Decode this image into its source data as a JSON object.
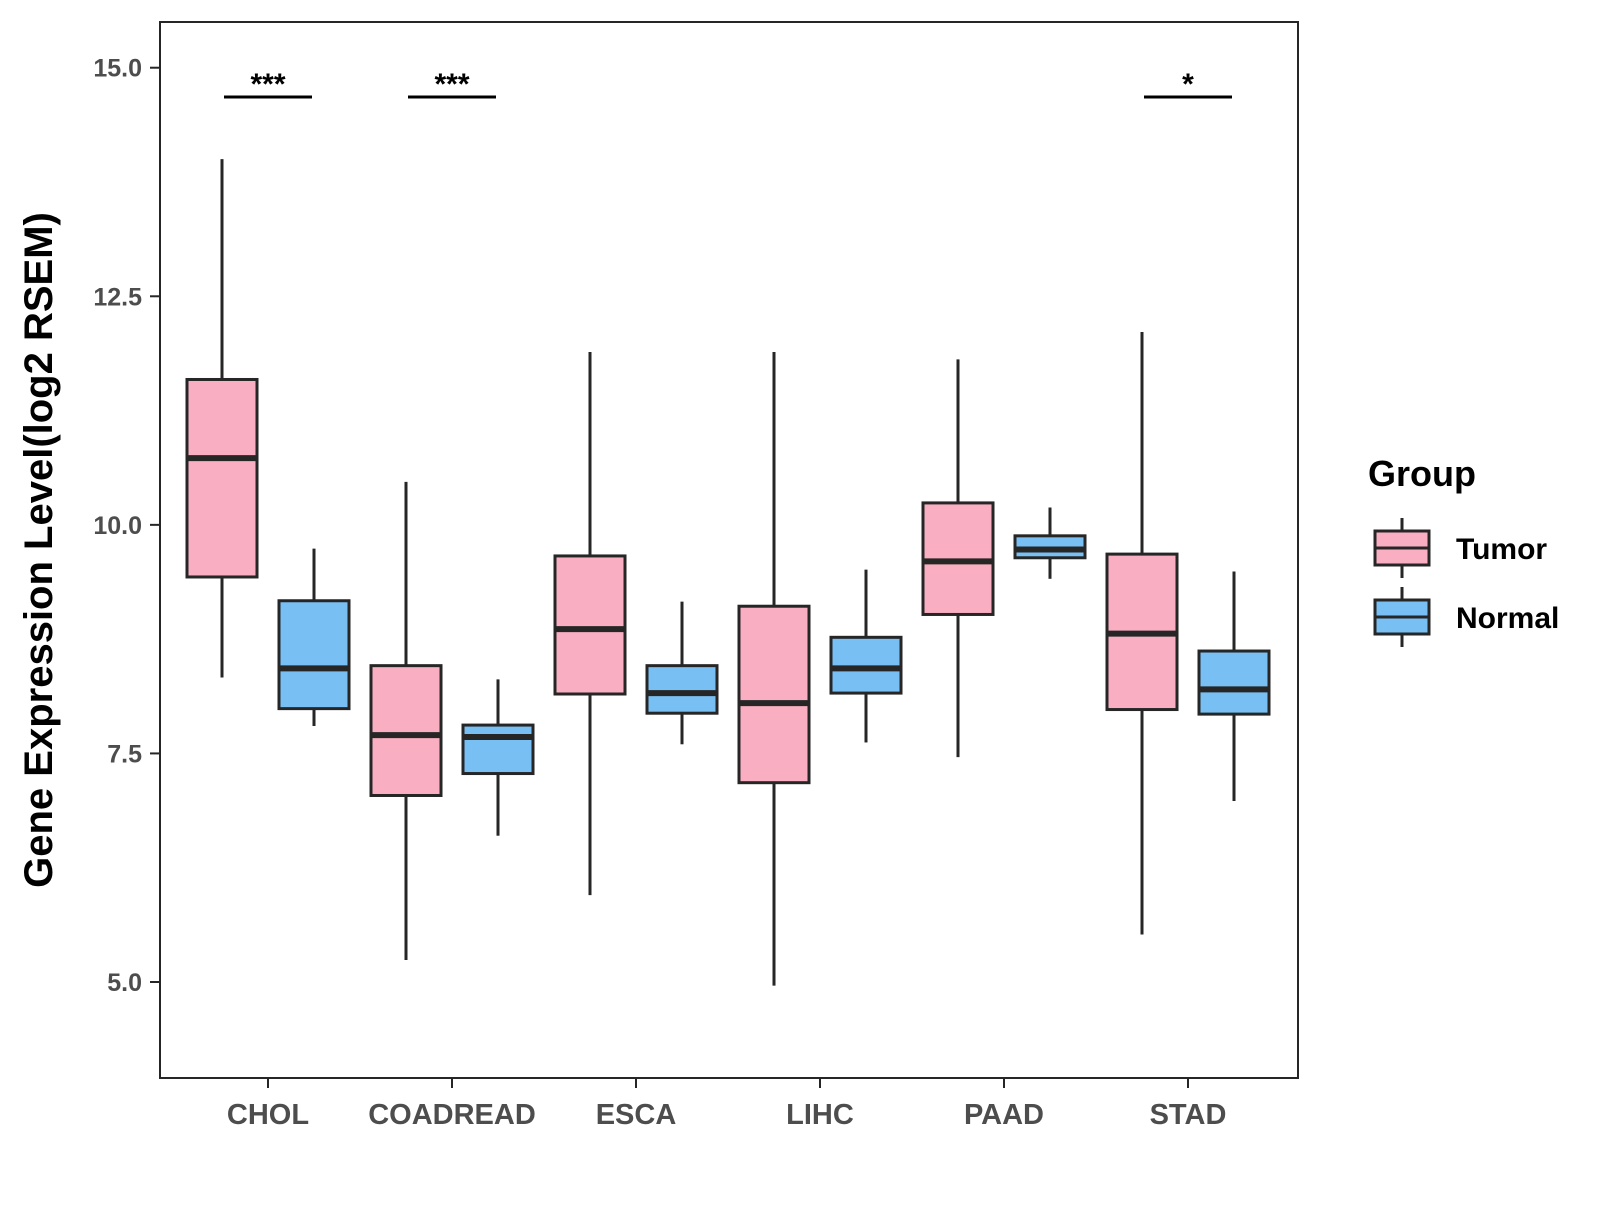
{
  "chart_data": {
    "type": "boxplot",
    "ylabel": "Gene Expression Level(log2 RSEM)",
    "xlabel": "",
    "ylim": [
      3.95,
      15.5
    ],
    "yticks": [
      5.0,
      7.5,
      10.0,
      12.5,
      15.0
    ],
    "ytick_labels": [
      "5.0",
      "7.5",
      "10.0",
      "12.5",
      "15.0"
    ],
    "categories": [
      "CHOL",
      "COADREAD",
      "ESCA",
      "LIHC",
      "PAAD",
      "STAD"
    ],
    "series": [
      {
        "name": "Tumor",
        "color": "#F9AFC1",
        "boxes": [
          {
            "min": 8.33,
            "q1": 9.43,
            "median": 10.73,
            "q3": 11.59,
            "max": 14.0
          },
          {
            "min": 5.24,
            "q1": 7.04,
            "median": 7.7,
            "q3": 8.46,
            "max": 10.47
          },
          {
            "min": 5.95,
            "q1": 8.15,
            "median": 8.86,
            "q3": 9.66,
            "max": 11.89
          },
          {
            "min": 4.96,
            "q1": 7.18,
            "median": 8.05,
            "q3": 9.11,
            "max": 11.89
          },
          {
            "min": 7.46,
            "q1": 9.02,
            "median": 9.6,
            "q3": 10.24,
            "max": 11.81
          },
          {
            "min": 5.52,
            "q1": 7.98,
            "median": 8.81,
            "q3": 9.68,
            "max": 12.11
          }
        ]
      },
      {
        "name": "Normal",
        "color": "#78C0F4",
        "boxes": [
          {
            "min": 7.8,
            "q1": 7.99,
            "median": 8.43,
            "q3": 9.17,
            "max": 9.74
          },
          {
            "min": 6.6,
            "q1": 7.28,
            "median": 7.68,
            "q3": 7.81,
            "max": 8.31
          },
          {
            "min": 7.6,
            "q1": 7.94,
            "median": 8.16,
            "q3": 8.46,
            "max": 9.16
          },
          {
            "min": 7.62,
            "q1": 8.16,
            "median": 8.43,
            "q3": 8.77,
            "max": 9.51
          },
          {
            "min": 9.41,
            "q1": 9.64,
            "median": 9.73,
            "q3": 9.88,
            "max": 10.19
          },
          {
            "min": 6.98,
            "q1": 7.93,
            "median": 8.2,
            "q3": 8.62,
            "max": 9.49
          }
        ]
      }
    ],
    "significance": [
      {
        "category": "CHOL",
        "label": "***",
        "y": 14.68
      },
      {
        "category": "COADREAD",
        "label": "***",
        "y": 14.68
      },
      {
        "category": "STAD",
        "label": "*",
        "y": 14.68
      }
    ],
    "legend": {
      "title": "Group",
      "position": "right",
      "items": [
        "Tumor",
        "Normal"
      ]
    }
  }
}
